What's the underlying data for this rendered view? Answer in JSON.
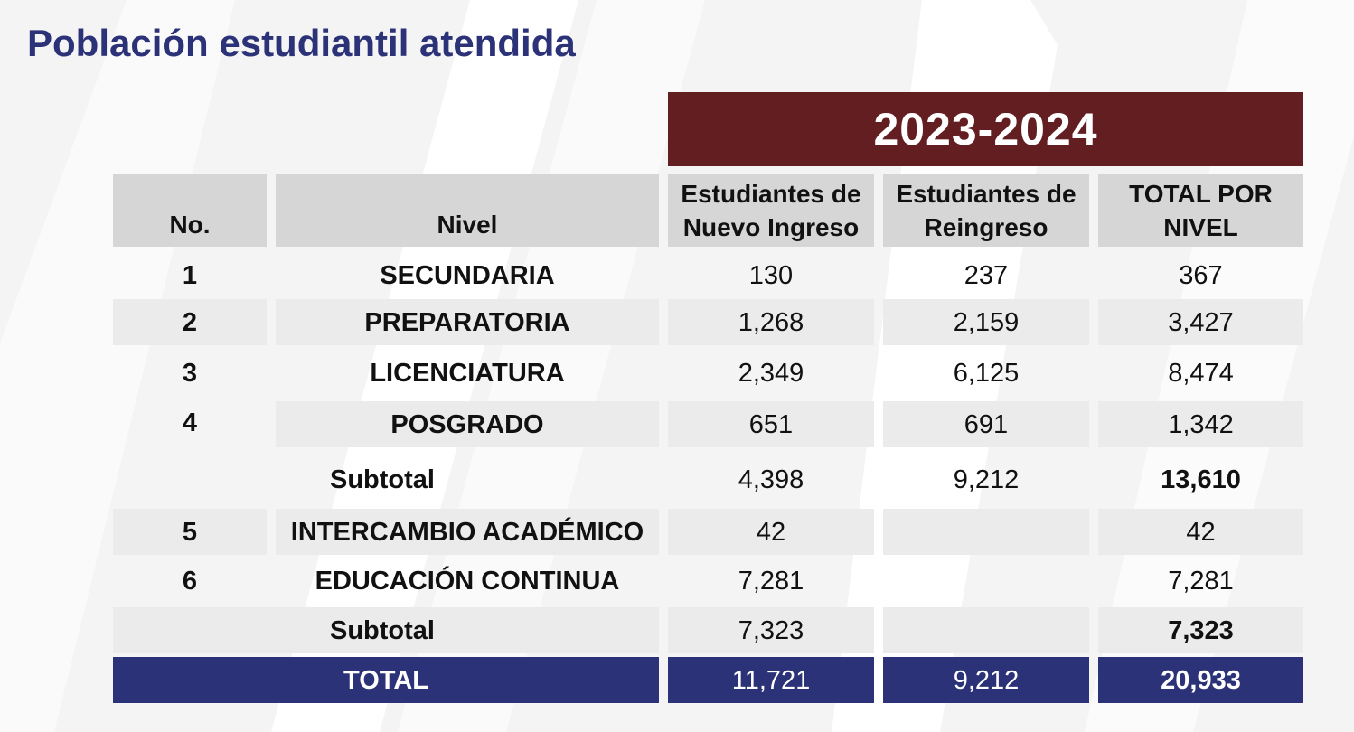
{
  "title": "Población estudiantil atendida",
  "period": "2023-2024",
  "colors": {
    "title": "#2b3277",
    "period_band": "#631e21",
    "header_bg": "#d6d6d6",
    "row_shade": "#ebebeb",
    "total_bg": "#2b3277"
  },
  "headers": {
    "no": "No.",
    "nivel": "Nivel",
    "nuevo": [
      "Estudiantes de",
      "Nuevo Ingreso"
    ],
    "reingreso": [
      "Estudiantes de",
      "Reingreso"
    ],
    "total": [
      "TOTAL POR",
      "NIVEL"
    ]
  },
  "rows": [
    {
      "no": "1",
      "nivel": "SECUNDARIA",
      "nuevo": "130",
      "reingreso": "237",
      "total": "367"
    },
    {
      "no": "2",
      "nivel": "PREPARATORIA",
      "nuevo": "1,268",
      "reingreso": "2,159",
      "total": "3,427"
    },
    {
      "no": "3",
      "nivel": "LICENCIATURA",
      "nuevo": "2,349",
      "reingreso": "6,125",
      "total": "8,474"
    },
    {
      "no": "4",
      "nivel": "POSGRADO",
      "nuevo": "651",
      "reingreso": "691",
      "total": "1,342"
    },
    {
      "no": "",
      "nivel": "Subtotal",
      "nuevo": "4,398",
      "reingreso": "9,212",
      "total": "13,610"
    },
    {
      "no": "5",
      "nivel": "INTERCAMBIO ACADÉMICO",
      "nuevo": "42",
      "reingreso": "",
      "total": "42"
    },
    {
      "no": "6",
      "nivel": "EDUCACIÓN CONTINUA",
      "nuevo": "7,281",
      "reingreso": "",
      "total": "7,281"
    },
    {
      "no": "",
      "nivel": "Subtotal",
      "nuevo": "7,323",
      "reingreso": "",
      "total": "7,323"
    }
  ],
  "total_row": {
    "label": "TOTAL",
    "nuevo": "11,721",
    "reingreso": "9,212",
    "total": "20,933"
  }
}
